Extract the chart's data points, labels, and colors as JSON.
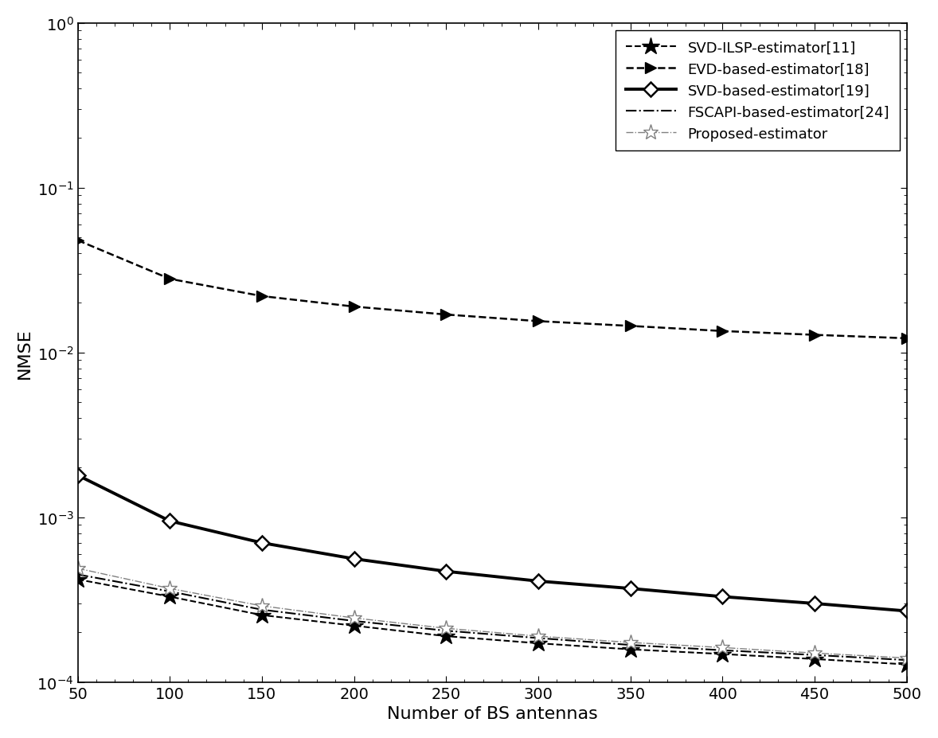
{
  "x": [
    50,
    100,
    150,
    200,
    250,
    300,
    350,
    400,
    450,
    500
  ],
  "svd_ilsp": [
    0.00042,
    0.00033,
    0.000255,
    0.00022,
    0.00019,
    0.000172,
    0.000158,
    0.000148,
    0.000138,
    0.000128
  ],
  "evd_based": [
    0.048,
    0.028,
    0.022,
    0.019,
    0.017,
    0.0155,
    0.0145,
    0.0135,
    0.0128,
    0.0122
  ],
  "svd_based": [
    0.0018,
    0.00095,
    0.0007,
    0.00056,
    0.00047,
    0.00041,
    0.00037,
    0.00033,
    0.0003,
    0.00027
  ],
  "fscapi": [
    0.00045,
    0.000355,
    0.000275,
    0.000235,
    0.000205,
    0.000185,
    0.000168,
    0.000156,
    0.000146,
    0.000136
  ],
  "proposed": [
    0.00049,
    0.00037,
    0.00029,
    0.000245,
    0.000212,
    0.00019,
    0.000174,
    0.000162,
    0.00015,
    0.00014
  ],
  "xlabel": "Number of BS antennas",
  "ylabel": "NMSE",
  "xlim": [
    50,
    500
  ],
  "ylim": [
    0.0001,
    1.0
  ],
  "xticks": [
    50,
    100,
    150,
    200,
    250,
    300,
    350,
    400,
    450,
    500
  ],
  "legend": [
    "SVD-ILSP-estimator[11]",
    "EVD-based-estimator[18]",
    "SVD-based-estimator[19]",
    "FSCAPI-based-estimator[24]",
    "Proposed-estimator"
  ],
  "bg_color": "#ffffff",
  "legend_fontsize": 13,
  "axis_fontsize": 16,
  "tick_fontsize": 14
}
